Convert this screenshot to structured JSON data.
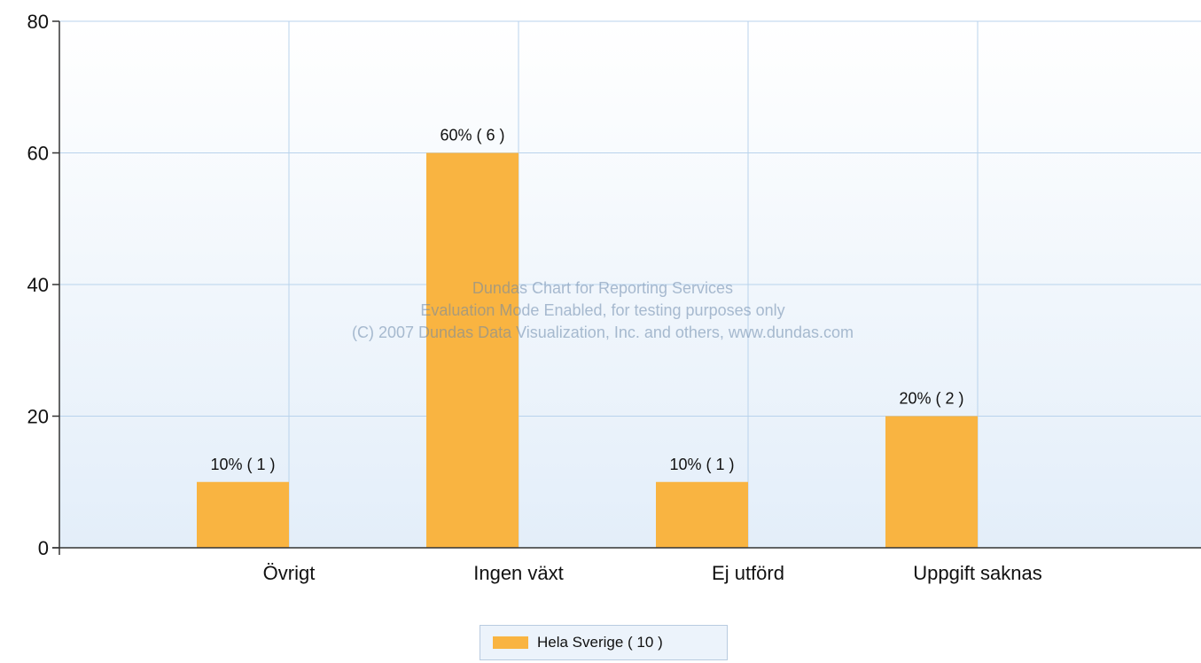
{
  "chart_data": {
    "type": "bar",
    "categories": [
      "Övrigt",
      "Ingen växt",
      "Ej utförd",
      "Uppgift saknas"
    ],
    "series": [
      {
        "name": "Hela Sverige  ( 10 )",
        "values": [
          10,
          60,
          10,
          20
        ],
        "color": "#f9b441"
      }
    ],
    "data_labels": [
      "10% ( 1 )",
      "60% ( 6 )",
      "10% ( 1 )",
      "20% ( 2 )"
    ],
    "ylim": [
      0,
      80
    ],
    "yticks": [
      0,
      20,
      40,
      60,
      80
    ],
    "grid": true,
    "legend": "bottom-center",
    "watermark": [
      "Dundas Chart for Reporting Services",
      "Evaluation Mode Enabled, for testing purposes only",
      "(C) 2007 Dundas Data Visualization, Inc. and others, www.dundas.com"
    ]
  },
  "colors": {
    "bar": "#f9b441",
    "grid": "#b9d3ec",
    "plot_top": "#ffffff",
    "plot_bottom": "#e3eef9",
    "axis": "#333333"
  }
}
